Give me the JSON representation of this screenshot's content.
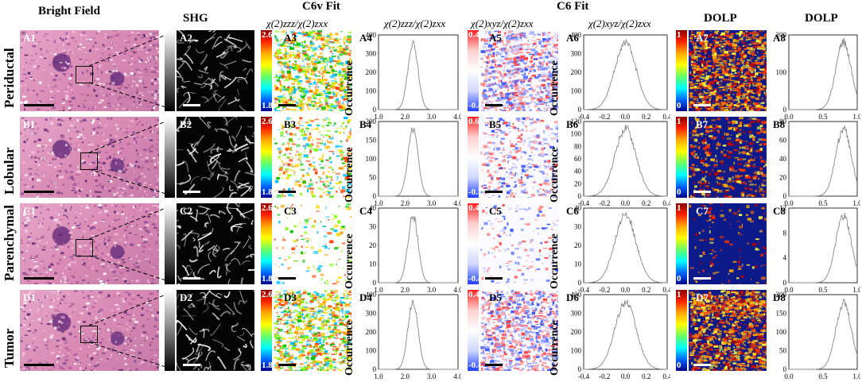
{
  "headers": {
    "bright_field": "Bright Field",
    "shg": "SHG",
    "c6v_fit": "C6v Fit",
    "c6_fit": "C6 Fit",
    "ratio_zzz": "χ(2)zzz/χ(2)zxx",
    "ratio_xyz": "χ(2)xyz/χ(2)zxx",
    "dolp": "DOLP",
    "dolp_hist": "DOLP"
  },
  "y_axis_label": "Occurrence",
  "rows": [
    {
      "name": "Periductal",
      "labels": [
        "A1",
        "A2",
        "A3",
        "A4",
        "A5",
        "A6",
        "A7",
        "A8"
      ],
      "cbar_zzz": [
        "2.6",
        "1.8"
      ],
      "cbar_xyz": [
        "0.4",
        "-0.4"
      ],
      "cbar_dolp": [
        "1",
        "0"
      ],
      "y_ticks_zzz": [
        "400",
        "300",
        "200",
        "100",
        "0"
      ],
      "y_ticks_xyz": [
        "400",
        "300",
        "200",
        "100",
        "0"
      ],
      "y_ticks_dolp": [
        "200",
        "100",
        "0"
      ]
    },
    {
      "name": "Lobular",
      "labels": [
        "B1",
        "B2",
        "B3",
        "B4",
        "B5",
        "B6",
        "B7",
        "B8"
      ],
      "cbar_zzz": [
        "2.6",
        "1.8"
      ],
      "cbar_xyz": [
        "0.6",
        "-0.2"
      ],
      "cbar_dolp": [
        "1",
        "0"
      ],
      "y_ticks_zzz": [
        "200",
        "150",
        "100",
        "50",
        "0"
      ],
      "y_ticks_xyz": [
        "120",
        "100",
        "80",
        "60",
        "40",
        "20",
        "0"
      ],
      "y_ticks_dolp": [
        "80",
        "60",
        "40",
        "20",
        "0"
      ]
    },
    {
      "name": "Parenchymal",
      "labels": [
        "C1",
        "C2",
        "C3",
        "C4",
        "C5",
        "C6",
        "C7",
        "C8"
      ],
      "cbar_zzz": [
        "2.6",
        "1.8"
      ],
      "cbar_xyz": [
        "0.4",
        "-0.4"
      ],
      "cbar_dolp": [
        "1",
        "0"
      ],
      "y_ticks_zzz": [
        "40",
        "30",
        "20",
        "10",
        "0"
      ],
      "y_ticks_xyz": [
        "40",
        "30",
        "20",
        "10",
        "0"
      ],
      "y_ticks_dolp": [
        "12",
        "8",
        "4",
        "0"
      ]
    },
    {
      "name": "Tumor",
      "labels": [
        "D1",
        "D2",
        "D3",
        "D4",
        "D5",
        "D6",
        "D7",
        "D8"
      ],
      "cbar_zzz": [
        "2.6",
        "1.8"
      ],
      "cbar_xyz": [
        "0.4",
        "-0.4"
      ],
      "cbar_dolp": [
        "1",
        "0"
      ],
      "y_ticks_zzz": [
        "400",
        "300",
        "200",
        "100",
        "0"
      ],
      "y_ticks_xyz": [
        "400",
        "300",
        "200",
        "100",
        "0"
      ],
      "y_ticks_dolp": [
        "200",
        "150",
        "100",
        "50",
        "0"
      ]
    }
  ],
  "chart_data": [
    {
      "type": "histogram",
      "name": "zzz_ratio",
      "xlim": [
        1.0,
        4.0
      ],
      "x_ticks": [
        "1.0",
        "2.0",
        "3.0",
        "4.0"
      ],
      "peak_x": 2.3
    },
    {
      "type": "histogram",
      "name": "xyz_ratio",
      "xlim": [
        -0.4,
        0.4
      ],
      "x_ticks": [
        "-0.4",
        "-0.2",
        "0.0",
        "0.2",
        "0.4"
      ],
      "peak_x": 0.0
    },
    {
      "type": "histogram",
      "name": "dolp",
      "xlim": [
        0.0,
        1.0
      ],
      "x_ticks": [
        "0.0",
        "0.5",
        "1.0"
      ],
      "peak_x": 0.8
    }
  ],
  "colors": {
    "he_pink": "#d98ab4",
    "he_purple": "#7a3f86",
    "dolp_bg": "#0d1a8a",
    "line": "#888888"
  }
}
